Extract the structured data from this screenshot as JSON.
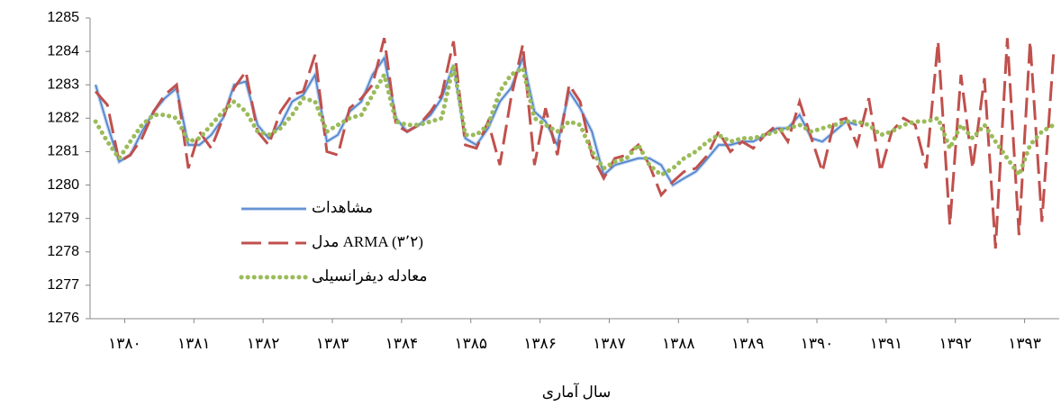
{
  "chart_data": {
    "type": "line",
    "x_label": "سال آماری",
    "x": [
      1380.08,
      1380.25,
      1380.42,
      1380.58,
      1380.75,
      1380.92,
      1381.08,
      1381.25,
      1381.42,
      1381.58,
      1381.75,
      1381.92,
      1382.08,
      1382.25,
      1382.42,
      1382.58,
      1382.75,
      1382.92,
      1383.08,
      1383.25,
      1383.42,
      1383.58,
      1383.75,
      1383.92,
      1384.08,
      1384.25,
      1384.42,
      1384.58,
      1384.75,
      1384.92,
      1385.08,
      1385.25,
      1385.42,
      1385.58,
      1385.75,
      1385.92,
      1386.08,
      1386.25,
      1386.42,
      1386.58,
      1386.75,
      1386.92,
      1387.08,
      1387.25,
      1387.42,
      1387.58,
      1387.75,
      1387.92,
      1388.08,
      1388.25,
      1388.42,
      1388.58,
      1388.75,
      1388.92,
      1389.08,
      1389.25,
      1389.42,
      1389.58,
      1389.75,
      1389.92,
      1390.08,
      1390.25,
      1390.42,
      1390.58,
      1390.75,
      1390.92,
      1391.08,
      1391.25,
      1391.42,
      1391.58,
      1391.75,
      1391.92,
      1392.08,
      1392.25,
      1392.42,
      1392.58,
      1392.75,
      1392.92,
      1393.08,
      1393.25,
      1393.42,
      1393.58,
      1393.75,
      1393.92
    ],
    "xlim": [
      1380,
      1394
    ],
    "xticks": [
      {
        "value": 1380.5,
        "label": "۱۳۸۰"
      },
      {
        "value": 1381.5,
        "label": "۱۳۸۱"
      },
      {
        "value": 1382.5,
        "label": "۱۳۸۲"
      },
      {
        "value": 1383.5,
        "label": "۱۳۸۳"
      },
      {
        "value": 1384.5,
        "label": "۱۳۸۴"
      },
      {
        "value": 1385.5,
        "label": "۱۳۸۵"
      },
      {
        "value": 1386.5,
        "label": "۱۳۸۶"
      },
      {
        "value": 1387.5,
        "label": "۱۳۸۷"
      },
      {
        "value": 1388.5,
        "label": "۱۳۸۸"
      },
      {
        "value": 1389.5,
        "label": "۱۳۸۹"
      },
      {
        "value": 1390.5,
        "label": "۱۳۹۰"
      },
      {
        "value": 1391.5,
        "label": "۱۳۹۱"
      },
      {
        "value": 1392.5,
        "label": "۱۳۹۲"
      },
      {
        "value": 1393.5,
        "label": "۱۳۹۳"
      }
    ],
    "ylim": [
      1276,
      1285
    ],
    "yticks": [
      1276,
      1277,
      1278,
      1279,
      1280,
      1281,
      1282,
      1283,
      1284,
      1285
    ],
    "grid": false,
    "legend": "lower left",
    "series": [
      {
        "name": "مشاهدات",
        "color": "#4a7ec8",
        "style": "double",
        "values": [
          1283.0,
          1281.8,
          1280.7,
          1280.9,
          1281.6,
          1282.2,
          1282.6,
          1282.9,
          1281.2,
          1281.2,
          1281.5,
          1282.0,
          1283.0,
          1283.1,
          1281.8,
          1281.4,
          1281.8,
          1282.5,
          1282.7,
          1283.3,
          1281.3,
          1281.5,
          1282.2,
          1282.5,
          1283.3,
          1283.8,
          1282.0,
          1281.6,
          1281.8,
          1282.1,
          1282.6,
          1283.6,
          1281.4,
          1281.2,
          1281.7,
          1282.5,
          1282.9,
          1283.8,
          1282.2,
          1281.9,
          1281.2,
          1282.8,
          1282.3,
          1281.6,
          1280.3,
          1280.6,
          1280.7,
          1280.8,
          1280.8,
          1280.6,
          1280.0,
          1280.2,
          1280.4,
          1280.8,
          1281.2,
          1281.2,
          1281.3,
          1281.3,
          1281.5,
          1281.7,
          1281.7,
          1282.1,
          1281.4,
          1281.3,
          1281.6,
          1281.9,
          1281.8,
          null,
          null,
          null,
          null,
          null,
          null,
          null,
          null,
          null,
          null,
          null,
          null,
          null,
          null,
          null,
          null,
          null
        ]
      },
      {
        "name": "مدل ARMA (۳٬۲)",
        "color": "#c0504d",
        "style": "dashed",
        "values": [
          1282.8,
          1282.4,
          1280.7,
          1280.9,
          1281.4,
          1282.2,
          1282.7,
          1283.0,
          1280.5,
          1281.6,
          1281.1,
          1282.0,
          1282.9,
          1283.4,
          1281.6,
          1281.2,
          1282.2,
          1282.7,
          1282.8,
          1283.9,
          1281.0,
          1280.9,
          1282.3,
          1282.6,
          1283.0,
          1284.4,
          1281.8,
          1281.6,
          1281.8,
          1282.2,
          1282.7,
          1284.3,
          1281.2,
          1281.1,
          1281.9,
          1280.6,
          1282.6,
          1284.2,
          1280.6,
          1282.3,
          1280.9,
          1283.0,
          1282.5,
          1280.9,
          1280.2,
          1280.8,
          1280.9,
          1281.2,
          1280.6,
          1279.7,
          1280.1,
          1280.4,
          1280.5,
          1280.9,
          1281.6,
          1281.0,
          1281.3,
          1281.1,
          1281.5,
          1281.8,
          1281.3,
          1282.5,
          1281.4,
          1280.4,
          1281.9,
          1282.0,
          1281.2,
          1282.6,
          1280.4,
          1281.6,
          1282.0,
          1281.8,
          1280.5,
          1284.3,
          1278.8,
          1283.3,
          1280.5,
          1283.2,
          1278.1,
          1284.4,
          1278.5,
          1284.3,
          1278.9,
          1284.0
        ]
      },
      {
        "name": "معادله دیفرانسیلی",
        "color": "#9bbb59",
        "style": "dotted",
        "values": [
          1281.9,
          1281.3,
          1280.8,
          1281.3,
          1281.8,
          1282.1,
          1282.1,
          1282.0,
          1281.3,
          1281.4,
          1281.8,
          1282.2,
          1282.5,
          1282.2,
          1281.6,
          1281.5,
          1281.7,
          1282.1,
          1282.6,
          1282.5,
          1281.6,
          1281.8,
          1282.0,
          1282.1,
          1282.7,
          1283.3,
          1281.9,
          1281.8,
          1281.8,
          1281.9,
          1282.0,
          1283.6,
          1281.5,
          1281.5,
          1281.8,
          1282.8,
          1283.3,
          1283.5,
          1282.0,
          1281.8,
          1281.6,
          1281.9,
          1281.8,
          1281.0,
          1280.5,
          1280.7,
          1280.8,
          1281.2,
          1280.6,
          1280.3,
          1280.5,
          1280.8,
          1281.0,
          1281.3,
          1281.5,
          1281.3,
          1281.4,
          1281.4,
          1281.5,
          1281.6,
          1281.7,
          1281.8,
          1281.6,
          1281.7,
          1281.8,
          1281.9,
          1281.9,
          1281.8,
          1281.5,
          1281.6,
          1281.8,
          1281.9,
          1281.9,
          1282.0,
          1281.1,
          1281.8,
          1281.4,
          1281.8,
          1281.3,
          1280.8,
          1280.3,
          1281.2,
          1281.6,
          1281.8
        ]
      }
    ]
  }
}
